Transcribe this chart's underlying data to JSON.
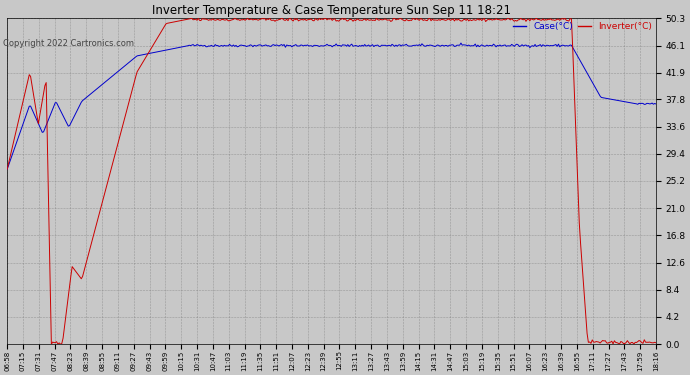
{
  "title": "Inverter Temperature & Case Temperature Sun Sep 11 18:21",
  "copyright": "Copyright 2022 Cartronics.com",
  "legend_case": "Case(°C)",
  "legend_inverter": "Inverter(°C)",
  "background_color": "#c8c8c8",
  "plot_background": "#c8c8c8",
  "case_color": "#0000cc",
  "inverter_color": "#cc0000",
  "ylim": [
    0.0,
    50.3
  ],
  "yticks": [
    0.0,
    4.2,
    8.4,
    12.6,
    16.8,
    21.0,
    25.2,
    29.4,
    33.6,
    37.8,
    41.9,
    46.1,
    50.3
  ],
  "xtick_labels": [
    "06:58",
    "07:15",
    "07:31",
    "07:47",
    "08:23",
    "08:39",
    "08:55",
    "09:11",
    "09:27",
    "09:43",
    "09:59",
    "10:15",
    "10:31",
    "10:47",
    "11:03",
    "11:19",
    "11:35",
    "11:51",
    "12:07",
    "12:23",
    "12:39",
    "12:55",
    "13:11",
    "13:27",
    "13:43",
    "13:59",
    "14:15",
    "14:31",
    "14:47",
    "15:03",
    "15:19",
    "15:35",
    "15:51",
    "16:07",
    "16:23",
    "16:39",
    "16:55",
    "17:11",
    "17:27",
    "17:43",
    "17:59",
    "18:16"
  ],
  "n_points": 500,
  "figwidth": 6.9,
  "figheight": 3.75,
  "dpi": 100
}
